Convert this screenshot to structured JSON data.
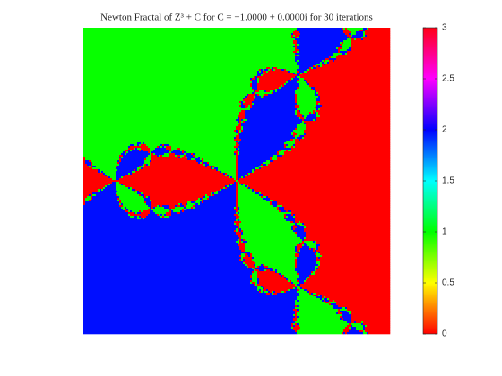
{
  "chart_data": {
    "type": "newton_fractal",
    "title": "Newton Fractal of Z³ + C for C = −1.0000 + 0.0000i for 30 iterations",
    "colormap": "hsv",
    "colorbar": {
      "lim": [
        0,
        3
      ],
      "ticks": [
        0,
        0.5,
        1,
        1.5,
        2,
        2.5,
        3
      ]
    }
  }
}
